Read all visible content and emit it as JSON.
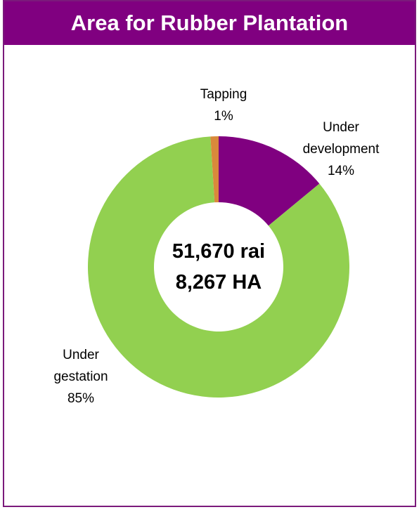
{
  "chart_data": {
    "type": "donut",
    "title": "Area for Rubber Plantation",
    "categories": [
      "Under development",
      "Under gestation",
      "Tapping"
    ],
    "values": [
      14,
      85,
      1
    ],
    "value_labels": [
      "14%",
      "85%",
      "1%"
    ],
    "colors": [
      "#800080",
      "#92d050",
      "#d9893b"
    ],
    "center_text": [
      "51,670 rai",
      "8,267 HA"
    ]
  }
}
